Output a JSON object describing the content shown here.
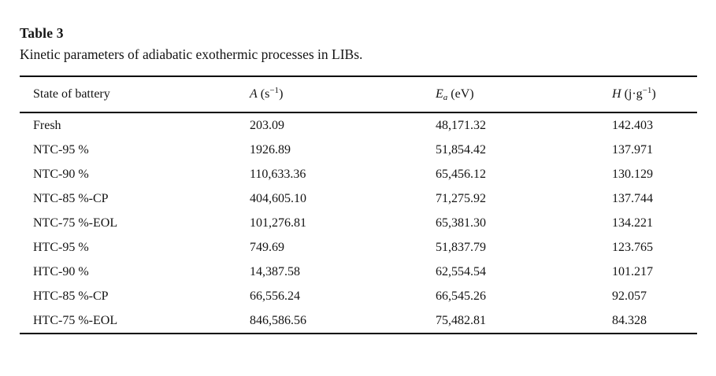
{
  "page": {
    "background_color": "#ffffff",
    "text_color": "#141414",
    "rule_color": "#000000"
  },
  "caption": {
    "label": "Table 3",
    "description": "Kinetic parameters of adiabatic exothermic processes in LIBs."
  },
  "table": {
    "columns": [
      {
        "text": "State of battery"
      },
      {
        "symbol": "A",
        "pre": " (s",
        "sup": "−1",
        "post": ")"
      },
      {
        "symbol": "E",
        "sub": "a",
        "pre": " (eV)"
      },
      {
        "symbol": "H",
        "pre": " (j·g",
        "sup": "−1",
        "post": ")"
      }
    ],
    "rows": [
      {
        "state": "Fresh",
        "A": "203.09",
        "Ea": "48,171.32",
        "H": "142.403"
      },
      {
        "state": "NTC-95 %",
        "A": "1926.89",
        "Ea": "51,854.42",
        "H": "137.971"
      },
      {
        "state": "NTC-90 %",
        "A": "110,633.36",
        "Ea": "65,456.12",
        "H": "130.129"
      },
      {
        "state": "NTC-85 %-CP",
        "A": "404,605.10",
        "Ea": "71,275.92",
        "H": "137.744"
      },
      {
        "state": "NTC-75 %-EOL",
        "A": "101,276.81",
        "Ea": "65,381.30",
        "H": "134.221"
      },
      {
        "state": "HTC-95 %",
        "A": "749.69",
        "Ea": "51,837.79",
        "H": "123.765"
      },
      {
        "state": "HTC-90 %",
        "A": "14,387.58",
        "Ea": "62,554.54",
        "H": "101.217"
      },
      {
        "state": "HTC-85 %-CP",
        "A": "66,556.24",
        "Ea": "66,545.26",
        "H": "92.057"
      },
      {
        "state": "HTC-75 %-EOL",
        "A": "846,586.56",
        "Ea": "75,482.81",
        "H": "84.328"
      }
    ]
  }
}
